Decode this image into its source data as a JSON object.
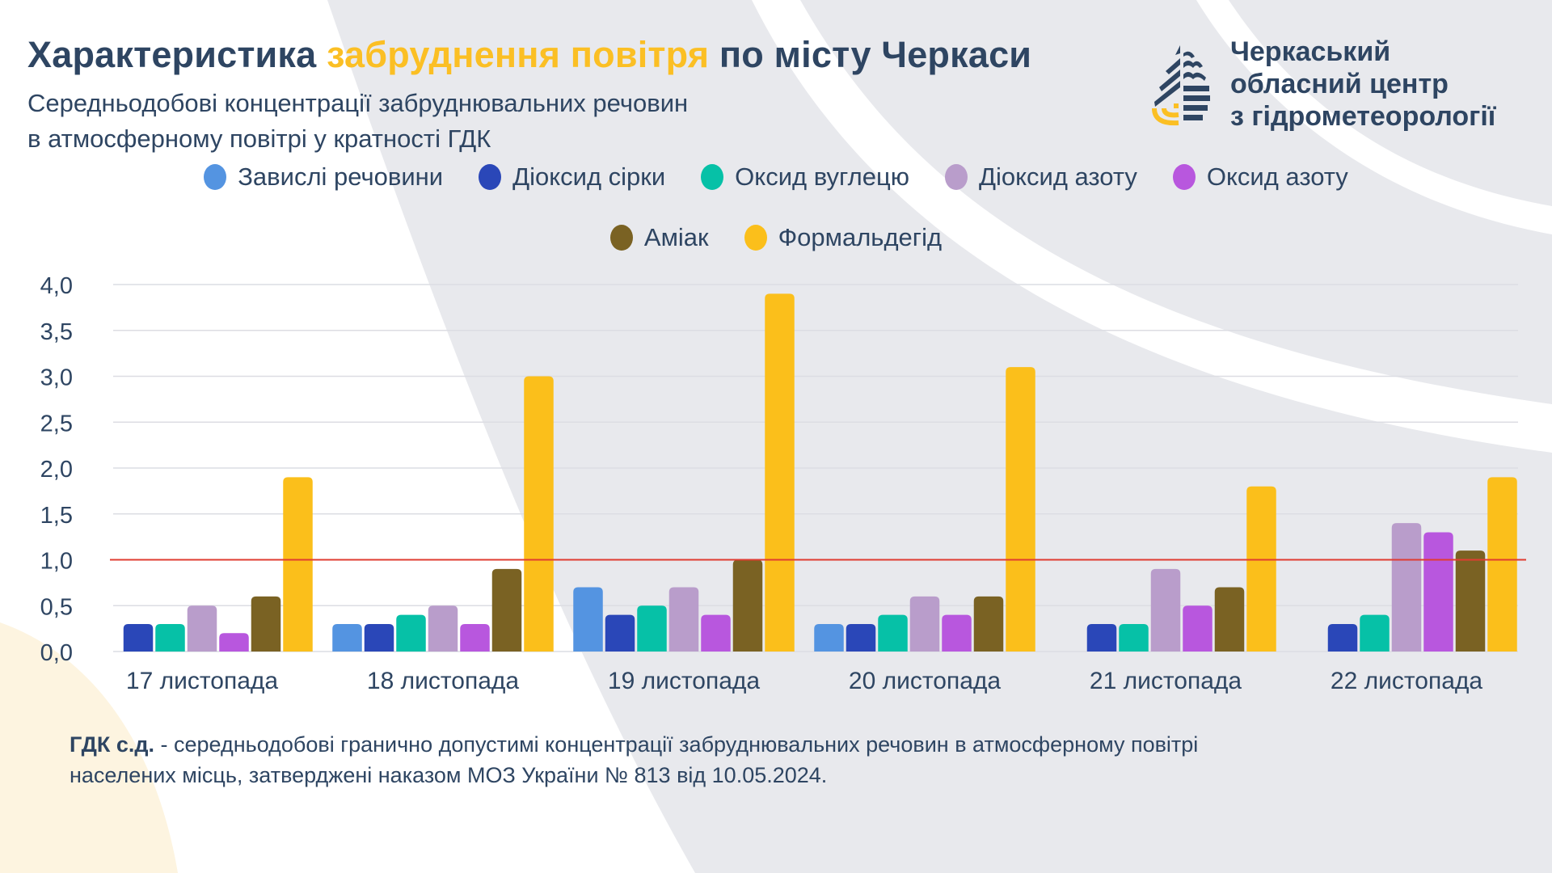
{
  "header": {
    "title_part1": "Характеристика ",
    "title_accent": "забруднення повітря",
    "title_part2": " по місту Черкаси",
    "subtitle_line1": "Середньодобові концентрації забруднювальних речовин",
    "subtitle_line2": "в атмосферному повітрі у кратності ГДК"
  },
  "organization": {
    "logo_icon": "drop-logo-icon",
    "name_line1": "Черкаський",
    "name_line2": "обласний центр",
    "name_line3": "з гідрометеорології"
  },
  "colors": {
    "text": "#2e4562",
    "accent": "#fbbf24",
    "limit_line": "#e03c31",
    "grid": "#dcdde3",
    "bg_shape": "#e8e9ed",
    "bg_shape_yellow": "#fdf4e0"
  },
  "footnote": {
    "term": "ГДК с.д.",
    "text": " - середньодобові гранично допустимі концентрації забруднювальних речовин в атмосферному повітрі",
    "text_line2": "населених місць, затверджені наказом МОЗ України № 813 від 10.05.2024."
  },
  "chart_data": {
    "type": "bar",
    "title": "Характеристика забруднення повітря по місту Черкаси",
    "subtitle": "Середньодобові концентрації забруднювальних речовин в атмосферному повітрі у кратності ГДК",
    "xlabel": "",
    "ylabel": "",
    "ylim": [
      0,
      4.0
    ],
    "yticks": [
      0,
      0.5,
      1.0,
      1.5,
      2.0,
      2.5,
      3.0,
      3.5,
      4.0
    ],
    "ytick_labels": [
      "0,0",
      "0,5",
      "1,0",
      "1,5",
      "2,0",
      "2,5",
      "3,0",
      "3,5",
      "4,0"
    ],
    "grid": true,
    "legend_position": "top-center",
    "reference_line": {
      "value": 1.0,
      "color": "#e03c31",
      "label": "ГДК"
    },
    "categories": [
      "17 листопада",
      "18 листопада",
      "19 листопада",
      "20 листопада",
      "21 листопада",
      "22 листопада"
    ],
    "series": [
      {
        "name": "Завислі речовини",
        "color": "#5494e1",
        "values": [
          null,
          0.3,
          0.7,
          0.3,
          null,
          null
        ]
      },
      {
        "name": "Діоксид сірки",
        "color": "#2a47b8",
        "values": [
          0.3,
          0.3,
          0.4,
          0.3,
          0.3,
          0.3
        ]
      },
      {
        "name": "Оксид вуглецю",
        "color": "#06c1a7",
        "values": [
          0.3,
          0.4,
          0.5,
          0.4,
          0.3,
          0.4
        ]
      },
      {
        "name": "Діоксид азоту",
        "color": "#b99dcb",
        "values": [
          0.5,
          0.5,
          0.7,
          0.6,
          0.9,
          1.4
        ]
      },
      {
        "name": "Оксид азоту",
        "color": "#b857de",
        "values": [
          0.2,
          0.3,
          0.4,
          0.4,
          0.5,
          1.3
        ]
      },
      {
        "name": "Аміак",
        "color": "#7a6223",
        "values": [
          0.6,
          0.9,
          1.0,
          0.6,
          0.7,
          1.1
        ]
      },
      {
        "name": "Формальдегід",
        "color": "#fbbf1b",
        "values": [
          1.9,
          3.0,
          3.9,
          3.1,
          1.8,
          1.9
        ]
      }
    ]
  }
}
